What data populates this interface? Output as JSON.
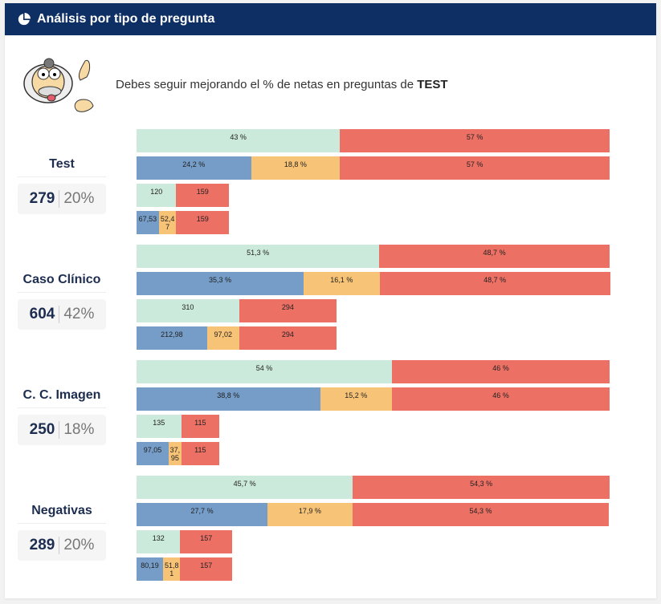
{
  "header": {
    "title": "Análisis por tipo de pregunta",
    "icon": "pie-chart-icon"
  },
  "intro": {
    "text": "Debes seguir mejorando el % de netas en preguntas de ",
    "highlight": "TEST",
    "image": "cartoon-doctor-surprised"
  },
  "colors": {
    "correct": "#cbeadb",
    "blue": "#759dc8",
    "orange": "#f7c376",
    "wrong": "#ec7064"
  },
  "chart_data": {
    "type": "bar",
    "stacked": true,
    "orientation": "horizontal",
    "groups": [
      {
        "name": "Test",
        "total": "279",
        "share": "20%",
        "pct_row": [
          "43 %",
          "57 %"
        ],
        "pct_values": [
          43,
          57
        ],
        "detail_pct_row": [
          "24,2 %",
          "18,8 %",
          "57 %"
        ],
        "detail_pct_values": [
          24.2,
          18.8,
          57
        ],
        "count_row": [
          "120",
          "159"
        ],
        "count_values": [
          120,
          159
        ],
        "detail_count_row": [
          "67,53",
          "52,47",
          "159"
        ],
        "detail_count_values": [
          67.53,
          52.47,
          159
        ]
      },
      {
        "name": "Caso Clínico",
        "total": "604",
        "share": "42%",
        "pct_row": [
          "51,3 %",
          "48,7 %"
        ],
        "pct_values": [
          51.3,
          48.7
        ],
        "detail_pct_row": [
          "35,3 %",
          "16,1 %",
          "48,7 %"
        ],
        "detail_pct_values": [
          35.3,
          16.1,
          48.7
        ],
        "count_row": [
          "310",
          "294"
        ],
        "count_values": [
          310,
          294
        ],
        "detail_count_row": [
          "212,98",
          "97,02",
          "294"
        ],
        "detail_count_values": [
          212.98,
          97.02,
          294
        ]
      },
      {
        "name": "C. C. Imagen",
        "total": "250",
        "share": "18%",
        "pct_row": [
          "54 %",
          "46 %"
        ],
        "pct_values": [
          54,
          46
        ],
        "detail_pct_row": [
          "38,8 %",
          "15,2 %",
          "46 %"
        ],
        "detail_pct_values": [
          38.8,
          15.2,
          46
        ],
        "count_row": [
          "135",
          "115"
        ],
        "count_values": [
          135,
          115
        ],
        "detail_count_row": [
          "97,05",
          "37,95",
          "115"
        ],
        "detail_count_values": [
          97.05,
          37.95,
          115
        ]
      },
      {
        "name": "Negativas",
        "total": "289",
        "share": "20%",
        "pct_row": [
          "45,7 %",
          "54,3 %"
        ],
        "pct_values": [
          45.7,
          54.3
        ],
        "detail_pct_row": [
          "27,7 %",
          "17,9 %",
          "54,3 %"
        ],
        "detail_pct_values": [
          27.7,
          17.9,
          54.3
        ],
        "count_row": [
          "132",
          "157"
        ],
        "count_values": [
          132,
          157
        ],
        "detail_count_row": [
          "80,19",
          "51,81",
          "157"
        ],
        "detail_count_values": [
          80.19,
          51.81,
          157
        ]
      }
    ]
  }
}
